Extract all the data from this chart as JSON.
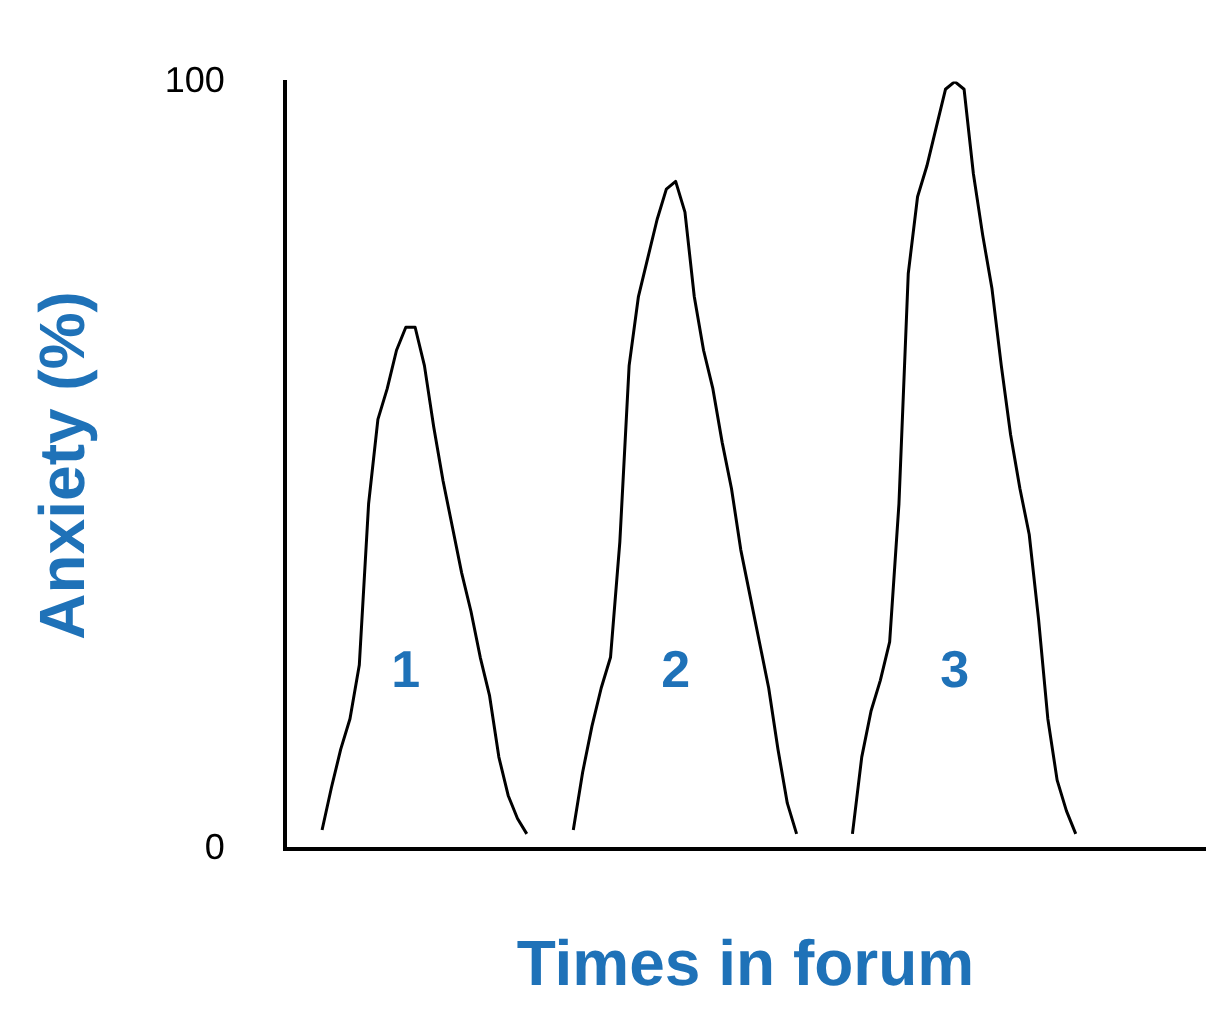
{
  "chart_data": {
    "type": "line",
    "xlabel": "Times in forum",
    "ylabel": "Anxiety (%)",
    "categories": [
      null,
      null,
      null,
      null,
      null,
      null,
      null,
      null,
      null,
      null,
      null,
      null,
      null,
      null,
      null,
      null,
      null,
      null,
      null,
      null,
      null,
      null,
      null,
      null,
      null,
      null,
      null,
      null,
      null,
      null,
      null,
      null,
      null,
      null,
      null,
      null,
      null,
      null,
      null,
      null,
      null,
      null,
      null,
      null,
      null,
      null,
      null,
      null,
      null,
      null,
      null,
      null,
      null,
      null,
      null,
      null,
      null,
      null,
      null,
      null,
      null,
      null,
      null,
      null,
      null,
      null,
      null,
      null,
      null,
      null,
      null,
      null,
      null,
      null,
      null,
      null,
      null,
      null,
      null,
      null,
      null,
      null,
      null,
      null,
      null,
      null,
      null,
      null,
      null,
      null,
      null,
      null,
      null,
      null,
      null,
      null,
      null,
      null,
      null,
      null
    ],
    "series": [
      {
        "color": "#000000",
        "values": [
          null,
          null,
          null,
          null,
          2.5,
          8,
          13,
          17,
          24,
          45,
          56,
          60,
          65,
          68,
          68,
          63,
          55,
          48,
          42,
          36,
          31,
          25,
          20,
          12,
          7,
          4,
          2,
          null,
          null,
          null,
          null,
          null,
          null,
          null,
          null,
          null,
          null,
          null,
          null,
          null,
          null,
          null,
          null,
          null,
          null,
          null,
          null,
          null,
          null,
          null,
          null,
          null,
          null,
          null,
          null,
          null,
          null,
          null,
          null,
          null,
          null,
          null,
          null,
          null,
          null,
          null,
          null,
          null,
          null,
          null,
          null,
          null,
          null,
          null,
          null,
          null,
          null,
          null,
          null,
          null,
          null,
          null,
          null,
          null,
          null,
          null,
          null,
          null,
          null,
          null,
          null,
          null,
          null,
          null,
          null,
          null,
          null,
          null,
          null,
          null
        ]
      },
      {
        "color": "#000000",
        "values": [
          null,
          null,
          null,
          null,
          null,
          null,
          null,
          null,
          null,
          null,
          null,
          null,
          null,
          null,
          null,
          null,
          null,
          null,
          null,
          null,
          null,
          null,
          null,
          null,
          null,
          null,
          null,
          null,
          null,
          null,
          null,
          2.5,
          10,
          16,
          21,
          25,
          40,
          63,
          72,
          77,
          82,
          86,
          87,
          83,
          72,
          65,
          60,
          53,
          47,
          39,
          33,
          27,
          21,
          13,
          6,
          2,
          null,
          null,
          null,
          null,
          null,
          null,
          null,
          null,
          null,
          null,
          null,
          null,
          null,
          null,
          null,
          null,
          null,
          null,
          null,
          null,
          null,
          null,
          null,
          null,
          null,
          null,
          null,
          null,
          null,
          null,
          null,
          null,
          null,
          null,
          null,
          null,
          null,
          null,
          null,
          null,
          null,
          null,
          null,
          null
        ]
      },
      {
        "color": "#000000",
        "values": [
          null,
          null,
          null,
          null,
          null,
          null,
          null,
          null,
          null,
          null,
          null,
          null,
          null,
          null,
          null,
          null,
          null,
          null,
          null,
          null,
          null,
          null,
          null,
          null,
          null,
          null,
          null,
          null,
          null,
          null,
          null,
          null,
          null,
          null,
          null,
          null,
          null,
          null,
          null,
          null,
          null,
          null,
          null,
          null,
          null,
          null,
          null,
          null,
          null,
          null,
          null,
          null,
          null,
          null,
          null,
          null,
          null,
          null,
          null,
          null,
          null,
          2,
          12,
          18,
          22,
          27,
          45,
          75,
          85,
          89,
          94,
          99,
          100,
          99,
          88,
          80,
          73,
          63,
          54,
          47,
          41,
          30,
          17,
          9,
          5,
          2,
          null,
          null,
          null,
          null,
          null,
          null,
          null,
          null,
          null,
          null,
          null,
          null,
          null,
          null
        ]
      }
    ],
    "annotations": [
      "1",
      "2",
      "3"
    ],
    "ylim": [
      0,
      100
    ],
    "yticks": [
      0,
      100
    ],
    "tick_labels": "y",
    "grid": false,
    "legend": false,
    "marker": "none",
    "line_style": "solid"
  }
}
